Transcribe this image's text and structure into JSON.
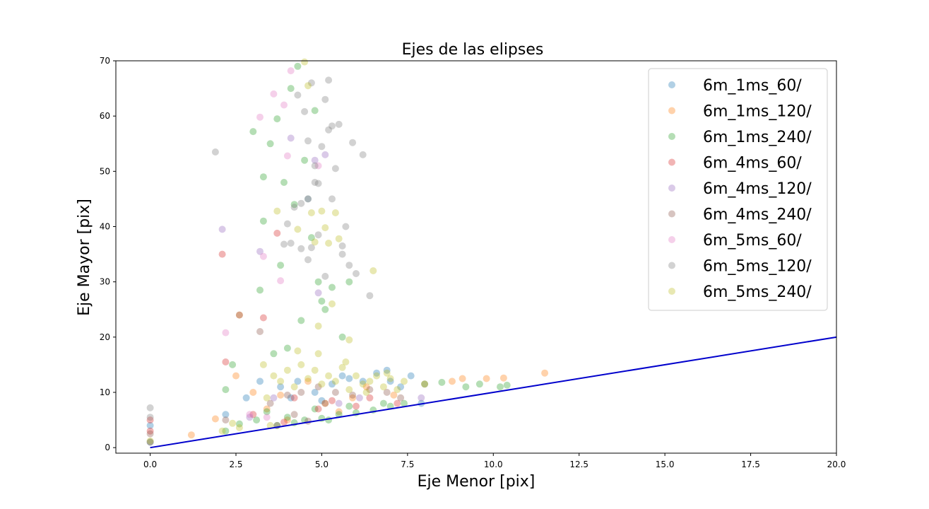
{
  "chart_data": {
    "type": "scatter",
    "title": "Ejes de las elipses",
    "xlabel": "Eje Menor [pix]",
    "ylabel": "Eje Mayor [pix]",
    "xlim": [
      -1,
      20
    ],
    "ylim": [
      -1,
      70
    ],
    "xticks": [
      "0.0",
      "2.5",
      "5.0",
      "7.5",
      "10.0",
      "12.5",
      "15.0",
      "17.5",
      "20.0"
    ],
    "yticks": [
      "0",
      "10",
      "20",
      "30",
      "40",
      "50",
      "60",
      "70"
    ],
    "grid": false,
    "legend_position": "top-right",
    "reference_line": {
      "x": [
        0,
        20
      ],
      "y": [
        0,
        20
      ],
      "color": "#0000cc"
    },
    "series": [
      {
        "name": "6m_1ms_60/",
        "color": "#1f77b4",
        "points": [
          [
            0,
            1
          ],
          [
            0,
            4
          ],
          [
            2.2,
            6
          ],
          [
            2.8,
            9
          ],
          [
            3.2,
            12
          ],
          [
            3.8,
            11
          ],
          [
            4.3,
            12
          ],
          [
            4.8,
            10
          ],
          [
            5.3,
            11.5
          ],
          [
            5.8,
            12.5
          ],
          [
            6.2,
            12
          ],
          [
            6.6,
            13.5
          ],
          [
            7.0,
            12
          ],
          [
            7.3,
            11
          ],
          [
            7.6,
            13
          ],
          [
            7.9,
            8
          ],
          [
            4.1,
            9
          ],
          [
            5.0,
            8.5
          ],
          [
            5.6,
            13
          ],
          [
            6.9,
            14
          ]
        ]
      },
      {
        "name": "6m_1ms_120/",
        "color": "#ff7f0e",
        "points": [
          [
            1.2,
            2.3
          ],
          [
            1.9,
            5.2
          ],
          [
            2.5,
            13
          ],
          [
            2.6,
            24
          ],
          [
            3.0,
            10
          ],
          [
            3.4,
            7
          ],
          [
            3.8,
            9.5
          ],
          [
            4.6,
            12
          ],
          [
            5.1,
            8
          ],
          [
            5.9,
            9
          ],
          [
            6.3,
            11
          ],
          [
            7.1,
            9.5
          ],
          [
            8.0,
            11.5
          ],
          [
            8.8,
            12
          ],
          [
            9.1,
            12.5
          ],
          [
            9.8,
            12.5
          ],
          [
            10.3,
            12.6
          ],
          [
            11.5,
            13.5
          ],
          [
            4.0,
            5
          ],
          [
            5.5,
            6.5
          ]
        ]
      },
      {
        "name": "6m_1ms_240/",
        "color": "#2ca02c",
        "points": [
          [
            2.2,
            10.5
          ],
          [
            2.4,
            15
          ],
          [
            3.0,
            57.2
          ],
          [
            3.2,
            28.5
          ],
          [
            3.3,
            41
          ],
          [
            3.5,
            55
          ],
          [
            3.7,
            59.5
          ],
          [
            3.9,
            48
          ],
          [
            4.1,
            65
          ],
          [
            4.3,
            69
          ],
          [
            4.5,
            52
          ],
          [
            4.7,
            38
          ],
          [
            4.9,
            30
          ],
          [
            5.1,
            25
          ],
          [
            5.3,
            29
          ],
          [
            5.0,
            26.5
          ],
          [
            4.6,
            45
          ],
          [
            3.8,
            33
          ],
          [
            3.3,
            49
          ],
          [
            4.8,
            61
          ],
          [
            4.2,
            44
          ],
          [
            5.8,
            30
          ],
          [
            5.6,
            20
          ],
          [
            4.4,
            23
          ],
          [
            3.6,
            17
          ],
          [
            4.0,
            18
          ],
          [
            2.6,
            4.3
          ],
          [
            2.2,
            3
          ],
          [
            3.1,
            5
          ],
          [
            3.7,
            4
          ],
          [
            4.0,
            5.5
          ],
          [
            4.5,
            5
          ],
          [
            5.0,
            5.3
          ],
          [
            5.5,
            6
          ],
          [
            6.0,
            6.3
          ],
          [
            6.5,
            6.8
          ],
          [
            7.0,
            7.5
          ],
          [
            7.4,
            8
          ],
          [
            8.0,
            11.5
          ],
          [
            8.5,
            11.8
          ],
          [
            9.2,
            11
          ],
          [
            9.6,
            11.5
          ],
          [
            10.2,
            11
          ],
          [
            10.4,
            11.3
          ],
          [
            4.8,
            7
          ],
          [
            5.8,
            7.5
          ],
          [
            6.8,
            8
          ],
          [
            4.2,
            4.5
          ],
          [
            3.4,
            6.5
          ],
          [
            5.2,
            5
          ]
        ]
      },
      {
        "name": "6m_4ms_60/",
        "color": "#d62728",
        "points": [
          [
            0,
            3
          ],
          [
            0,
            5
          ],
          [
            2.1,
            35
          ],
          [
            2.2,
            15.5
          ],
          [
            3.3,
            23.5
          ],
          [
            3.7,
            38.8
          ],
          [
            3.9,
            4.6
          ],
          [
            4.2,
            9
          ],
          [
            4.9,
            7
          ],
          [
            5.3,
            8.5
          ],
          [
            6.0,
            7.5
          ],
          [
            6.4,
            9
          ],
          [
            7.2,
            8
          ],
          [
            3.0,
            6
          ]
        ]
      },
      {
        "name": "6m_4ms_120/",
        "color": "#9467bd",
        "points": [
          [
            2.1,
            39.5
          ],
          [
            3.2,
            35.5
          ],
          [
            4.1,
            56
          ],
          [
            4.6,
            45
          ],
          [
            4.8,
            52
          ],
          [
            5.1,
            53
          ],
          [
            4.9,
            28
          ],
          [
            3.6,
            9
          ],
          [
            5.5,
            8
          ],
          [
            6.1,
            9
          ],
          [
            7.9,
            9
          ],
          [
            2.9,
            5.5
          ]
        ]
      },
      {
        "name": "6m_4ms_240/",
        "color": "#8c564b",
        "points": [
          [
            0,
            1
          ],
          [
            0,
            2.5
          ],
          [
            2.2,
            5
          ],
          [
            2.6,
            24
          ],
          [
            3.2,
            21
          ],
          [
            3.5,
            8
          ],
          [
            4.0,
            9.5
          ],
          [
            4.4,
            10
          ],
          [
            4.9,
            11
          ],
          [
            5.4,
            10
          ],
          [
            5.9,
            9.5
          ],
          [
            6.4,
            10.5
          ],
          [
            6.9,
            10
          ],
          [
            7.3,
            9
          ],
          [
            4.2,
            6
          ],
          [
            5.1,
            8
          ],
          [
            3.7,
            4
          ],
          [
            4.6,
            4.8
          ]
        ]
      },
      {
        "name": "6m_5ms_60/",
        "color": "#e377c2",
        "points": [
          [
            2.2,
            20.8
          ],
          [
            3.2,
            59.8
          ],
          [
            3.3,
            34.6
          ],
          [
            3.8,
            30.2
          ],
          [
            3.9,
            62
          ],
          [
            4.1,
            68.2
          ],
          [
            4.0,
            52.8
          ],
          [
            3.6,
            64
          ],
          [
            4.9,
            51
          ],
          [
            2.9,
            6
          ],
          [
            3.4,
            5.5
          ]
        ]
      },
      {
        "name": "6m_5ms_120/",
        "color": "#7f7f7f",
        "points": [
          [
            0,
            7.2
          ],
          [
            0,
            5.5
          ],
          [
            1.9,
            53.5
          ],
          [
            4.0,
            40.5
          ],
          [
            4.2,
            43.5
          ],
          [
            4.4,
            36
          ],
          [
            4.6,
            55.5
          ],
          [
            4.8,
            48
          ],
          [
            4.9,
            47.8
          ],
          [
            5.0,
            54.5
          ],
          [
            5.2,
            57.5
          ],
          [
            5.4,
            50.5
          ],
          [
            5.6,
            35
          ],
          [
            5.8,
            33
          ],
          [
            6.0,
            31.5
          ],
          [
            6.2,
            53
          ],
          [
            6.4,
            27.5
          ],
          [
            5.9,
            55.2
          ],
          [
            4.7,
            66
          ],
          [
            5.1,
            63
          ],
          [
            5.2,
            66.5
          ],
          [
            4.5,
            60.8
          ],
          [
            4.3,
            63.8
          ],
          [
            5.5,
            58.5
          ],
          [
            4.1,
            37
          ],
          [
            4.6,
            34
          ],
          [
            5.3,
            45
          ],
          [
            5.7,
            40
          ],
          [
            4.4,
            44.2
          ],
          [
            4.9,
            38.5
          ],
          [
            5.1,
            31
          ],
          [
            4.7,
            36.2
          ],
          [
            3.9,
            36.8
          ],
          [
            5.3,
            58.2
          ],
          [
            4.8,
            51
          ],
          [
            5.6,
            36.5
          ]
        ]
      },
      {
        "name": "6m_5ms_240/",
        "color": "#bcbd22",
        "points": [
          [
            0,
            1.2
          ],
          [
            2.1,
            3
          ],
          [
            2.4,
            4.4
          ],
          [
            2.6,
            3.6
          ],
          [
            3.3,
            15
          ],
          [
            3.4,
            9
          ],
          [
            3.6,
            13
          ],
          [
            3.8,
            12
          ],
          [
            4.0,
            14
          ],
          [
            4.2,
            11
          ],
          [
            4.4,
            15
          ],
          [
            4.6,
            12.5
          ],
          [
            4.8,
            14
          ],
          [
            5.0,
            11.5
          ],
          [
            5.2,
            13
          ],
          [
            5.4,
            12
          ],
          [
            5.6,
            14.5
          ],
          [
            5.8,
            10.5
          ],
          [
            6.0,
            13
          ],
          [
            6.2,
            11.5
          ],
          [
            6.4,
            12
          ],
          [
            6.6,
            13
          ],
          [
            6.8,
            11
          ],
          [
            7.0,
            12.5
          ],
          [
            7.2,
            10.5
          ],
          [
            3.7,
            42.8
          ],
          [
            4.3,
            39.5
          ],
          [
            4.7,
            42.5
          ],
          [
            5.0,
            42.8
          ],
          [
            5.1,
            39.8
          ],
          [
            5.4,
            42.5
          ],
          [
            5.5,
            37.8
          ],
          [
            4.6,
            65.5
          ],
          [
            4.5,
            69.8
          ],
          [
            4.8,
            37.2
          ],
          [
            5.2,
            37
          ],
          [
            6.5,
            32
          ],
          [
            5.3,
            26
          ],
          [
            4.9,
            22
          ],
          [
            5.8,
            19.5
          ],
          [
            3.5,
            4
          ],
          [
            4.9,
            17
          ],
          [
            4.3,
            17.5
          ],
          [
            5.7,
            15.5
          ],
          [
            6.3,
            10
          ],
          [
            6.9,
            13.5
          ],
          [
            7.4,
            12
          ]
        ]
      }
    ]
  }
}
